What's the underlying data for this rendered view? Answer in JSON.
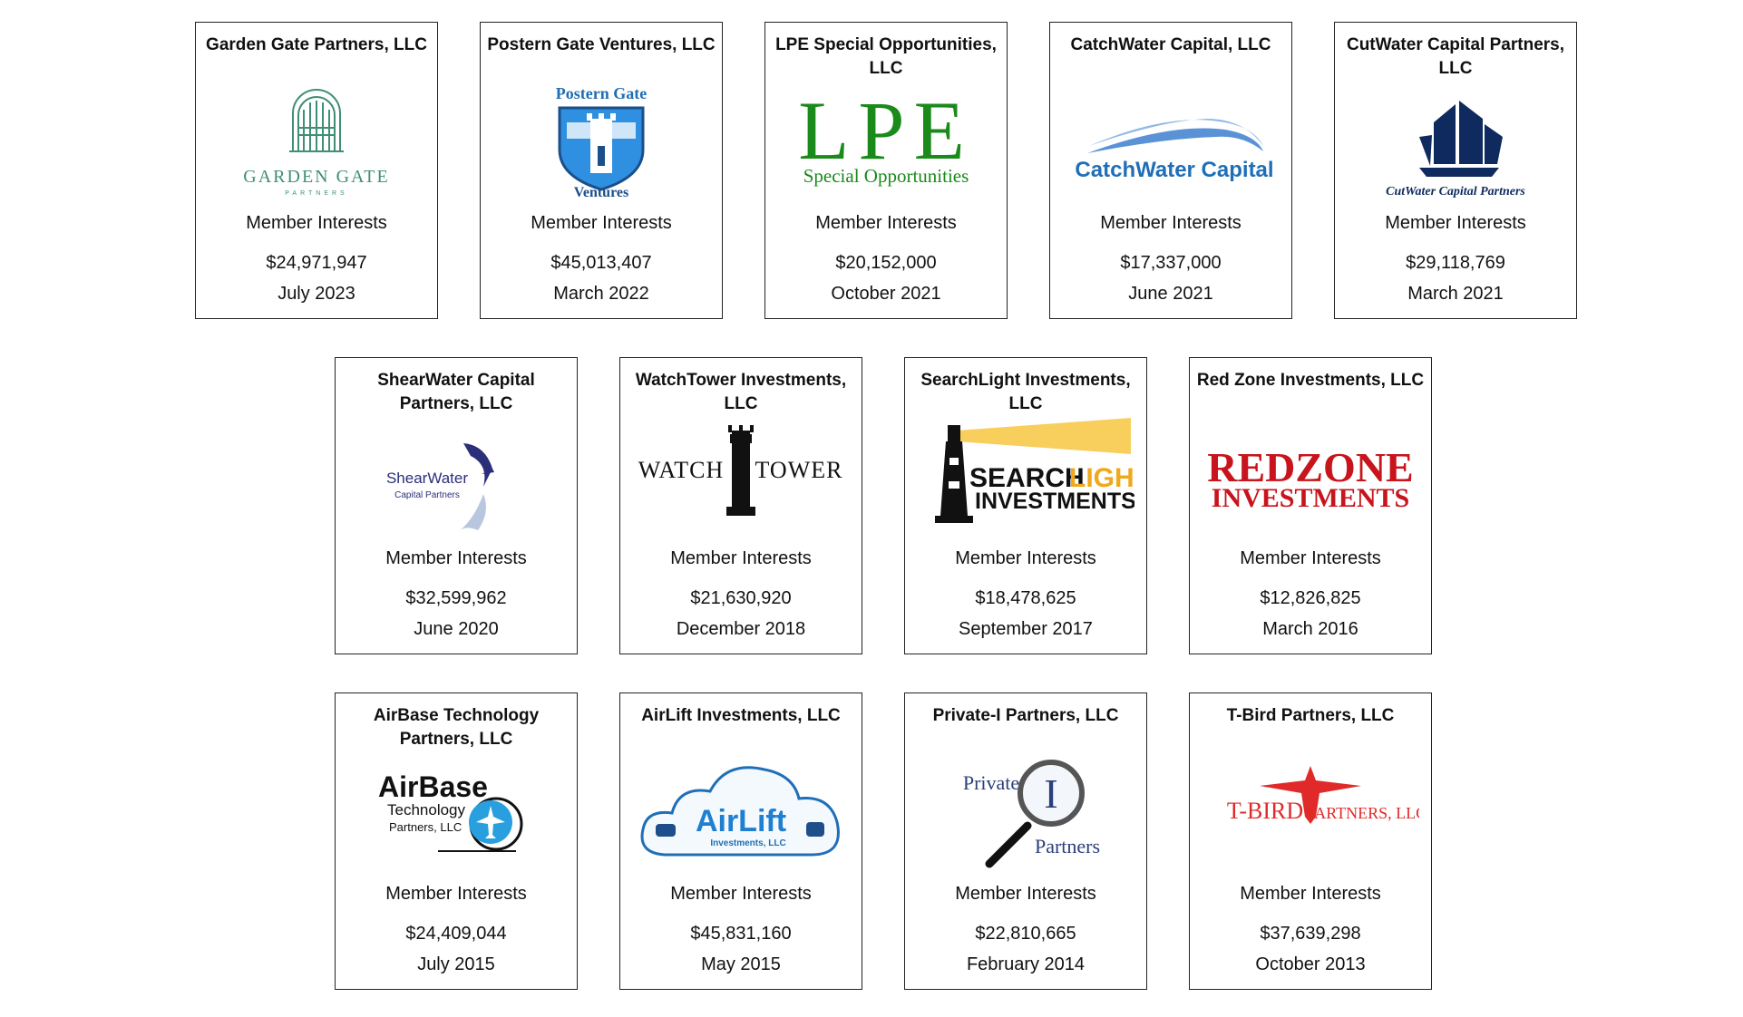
{
  "cards": [
    {
      "title": "Garden Gate Partners, LLC",
      "logo_text": "GARDEN GATE",
      "logo_subtext": "PARTNERS",
      "kind": "Member Interests",
      "amount": "$24,971,947",
      "date": "July 2023"
    },
    {
      "title": "Postern Gate Ventures, LLC",
      "logo_text": "Postern Gate",
      "logo_subtext": "Ventures",
      "kind": "Member Interests",
      "amount": "$45,013,407",
      "date": "March 2022"
    },
    {
      "title": "LPE Special Opportunities, LLC",
      "logo_text": "LPE",
      "logo_subtext": "Special Opportunities",
      "kind": "Member Interests",
      "amount": "$20,152,000",
      "date": "October 2021"
    },
    {
      "title": "CatchWater Capital, LLC",
      "logo_text": "CatchWater Capital",
      "kind": "Member Interests",
      "amount": "$17,337,000",
      "date": "June 2021"
    },
    {
      "title": "CutWater Capital Partners, LLC",
      "logo_text": "CutWater Capital Partners",
      "kind": "Member Interests",
      "amount": "$29,118,769",
      "date": "March 2021"
    },
    {
      "title": "ShearWater Capital Partners, LLC",
      "logo_text": "ShearWater",
      "logo_subtext": "Capital Partners",
      "kind": "Member Interests",
      "amount": "$32,599,962",
      "date": "June 2020"
    },
    {
      "title": "WatchTower Investments, LLC",
      "logo_text": "WATCH",
      "logo_subtext": "TOWER",
      "kind": "Member Interests",
      "amount": "$21,630,920",
      "date": "December 2018"
    },
    {
      "title": "SearchLight Investments, LLC",
      "logo_text": "SEARCH",
      "logo_text2": "LIGHT",
      "logo_subtext": "INVESTMENTS",
      "kind": "Member Interests",
      "amount": "$18,478,625",
      "date": "September 2017"
    },
    {
      "title": "Red Zone Investments, LLC",
      "logo_text": "REDZONE",
      "logo_subtext": "INVESTMENTS",
      "kind": "Member Interests",
      "amount": "$12,826,825",
      "date": "March 2016"
    },
    {
      "title": "AirBase Technology Partners, LLC",
      "logo_text": "AirBase",
      "logo_subtext": "Technology",
      "logo_subtext2": "Partners, LLC",
      "kind": "Member Interests",
      "amount": "$24,409,044",
      "date": "July 2015"
    },
    {
      "title": "AirLift Investments, LLC",
      "logo_text": "AirLift",
      "logo_subtext": "Investments, LLC",
      "kind": "Member Interests",
      "amount": "$45,831,160",
      "date": "May 2015"
    },
    {
      "title": "Private-I Partners, LLC",
      "logo_text": "Private",
      "logo_text2": "I",
      "logo_subtext": "Partners",
      "kind": "Member Interests",
      "amount": "$22,810,665",
      "date": "February 2014"
    },
    {
      "title": "T-Bird Partners, LLC",
      "logo_text": "T-BIRD",
      "logo_subtext": "PARTNERS, LLC",
      "kind": "Member Interests",
      "amount": "$37,639,298",
      "date": "October 2013"
    }
  ]
}
